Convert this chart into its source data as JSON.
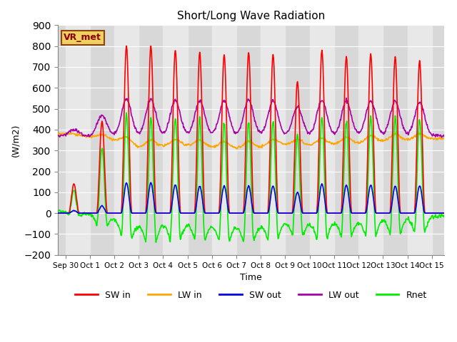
{
  "title": "Short/Long Wave Radiation",
  "ylabel": "(W/m2)",
  "xlabel": "Time",
  "ylim": [
    -200,
    900
  ],
  "xlim_days": [
    -0.3,
    15.5
  ],
  "background_color": "#ffffff",
  "plot_bg_color": "#d8d8d8",
  "grid_color": "#ffffff",
  "annotation_text": "VR_met",
  "series": {
    "SW_in": {
      "color": "#ff0000",
      "label": "SW in"
    },
    "LW_in": {
      "color": "#ffa500",
      "label": "LW in"
    },
    "SW_out": {
      "color": "#0000ee",
      "label": "SW out"
    },
    "LW_out": {
      "color": "#aa00aa",
      "label": "LW out"
    },
    "Rnet": {
      "color": "#00ee00",
      "label": "Rnet"
    }
  },
  "x_tick_labels": [
    "Sep 30",
    "Oct 1",
    "Oct 2",
    "Oct 3",
    "Oct 4",
    "Oct 5",
    "Oct 6",
    "Oct 7",
    "Oct 8",
    "Oct 9",
    "Oct 10",
    "Oct 11",
    "Oct 12",
    "Oct 13",
    "Oct 14",
    "Oct 15"
  ],
  "x_tick_positions": [
    0,
    1,
    2,
    3,
    4,
    5,
    6,
    7,
    8,
    9,
    10,
    11,
    12,
    13,
    14,
    15
  ],
  "SW_in_peaks": [
    0.35,
    1.5,
    2.5,
    3.5,
    4.5,
    5.5,
    6.5,
    7.5,
    8.5,
    9.5,
    10.5,
    11.5,
    12.5,
    13.5,
    14.5
  ],
  "SW_in_peak_vals": [
    140,
    440,
    800,
    800,
    780,
    770,
    760,
    770,
    760,
    630,
    780,
    750,
    760,
    750,
    730
  ],
  "SW_out_peak_vals": [
    12,
    35,
    145,
    145,
    135,
    130,
    130,
    130,
    130,
    100,
    140,
    135,
    135,
    130,
    130
  ],
  "LW_in_base": 360,
  "LW_in_bump_scale": 0.04,
  "LW_out_night": 370,
  "LW_out_peak_scale": 0.22,
  "Rnet_description": "SW_in - SW_out + LW_in - LW_out",
  "legend_ncol": 5,
  "linewidth": 1.2,
  "band_colors": [
    "#d8d8d8",
    "#e8e8e8"
  ]
}
